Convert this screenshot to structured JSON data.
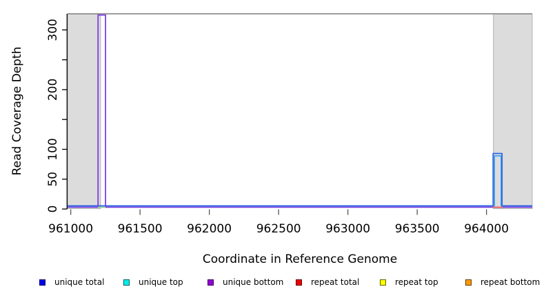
{
  "chart_data": {
    "type": "line",
    "title": "",
    "xlabel": "Coordinate in Reference Genome",
    "ylabel": "Read Coverage Depth",
    "xlim": [
      960977,
      964330
    ],
    "ylim": [
      0,
      327
    ],
    "x_ticks": [
      961000,
      961500,
      962000,
      962500,
      963000,
      963500,
      964000
    ],
    "x_tick_labels": [
      "961000",
      "961500",
      "962000",
      "962500",
      "963000",
      "963500",
      "964000"
    ],
    "y_ticks": [
      0,
      50,
      100,
      150,
      200,
      250,
      300
    ],
    "y_tick_labels": [
      "0",
      "50",
      "100",
      "",
      "200",
      "",
      "300"
    ],
    "grid": false,
    "legend_position": "bottom",
    "top_border_color": "#8f8f8f",
    "shaded_regions": [
      {
        "start": 960977,
        "end": 961215,
        "fill": "#dcdcdc",
        "border": "#b2b2b2"
      },
      {
        "start": 964050,
        "end": 964330,
        "fill": "#dcdcdc",
        "border": "#b2b2b2"
      }
    ],
    "series": [
      {
        "name": "unique top",
        "legend_color": "#00eeee",
        "draw_color": "#3fa3f0",
        "baseline_value": 0,
        "pulses": [
          {
            "start": 964057,
            "end": 964106,
            "value": 89
          }
        ]
      },
      {
        "name": "unique total",
        "legend_color": "#0000ee",
        "draw_color": "#2f66e3",
        "baseline_value": 0,
        "pulses": [
          {
            "start": 964048,
            "end": 964112,
            "value": 93
          }
        ]
      },
      {
        "name": "unique bottom",
        "legend_color": "#9400d3",
        "draw_color": "#7a3fe0",
        "baseline_value": 0,
        "pulses": [
          {
            "start": 961197,
            "end": 961251,
            "value": 325
          }
        ]
      },
      {
        "name": "repeat total",
        "legend_color": "#ee0000",
        "draw_color": "#e85c5c",
        "baseline_value": 0,
        "pulses": []
      },
      {
        "name": "repeat top",
        "legend_color": "#ffff00",
        "draw_color": "#ffff00",
        "baseline_value": 0,
        "pulses": []
      },
      {
        "name": "repeat bottom",
        "legend_color": "#ff9900",
        "draw_color": "#ff9900",
        "baseline_value": 0,
        "pulses": []
      }
    ],
    "baseline_overlap_segments": [
      {
        "start": 961197,
        "end": 961251,
        "color": "#8ed08e"
      },
      {
        "start": 964043,
        "end": 964116,
        "color": "#e85c5c"
      }
    ]
  },
  "legend": {
    "items": [
      {
        "label": "unique total",
        "color": "#0000ee",
        "border": "#000060"
      },
      {
        "label": "unique top",
        "color": "#00eeee",
        "border": "#006060"
      },
      {
        "label": "unique bottom",
        "color": "#9400d3",
        "border": "#3d0060"
      },
      {
        "label": "repeat total",
        "color": "#ee0000",
        "border": "#600000"
      },
      {
        "label": "repeat top",
        "color": "#ffff00",
        "border": "#606000"
      },
      {
        "label": "repeat bottom",
        "color": "#ff9900",
        "border": "#604000"
      }
    ]
  }
}
